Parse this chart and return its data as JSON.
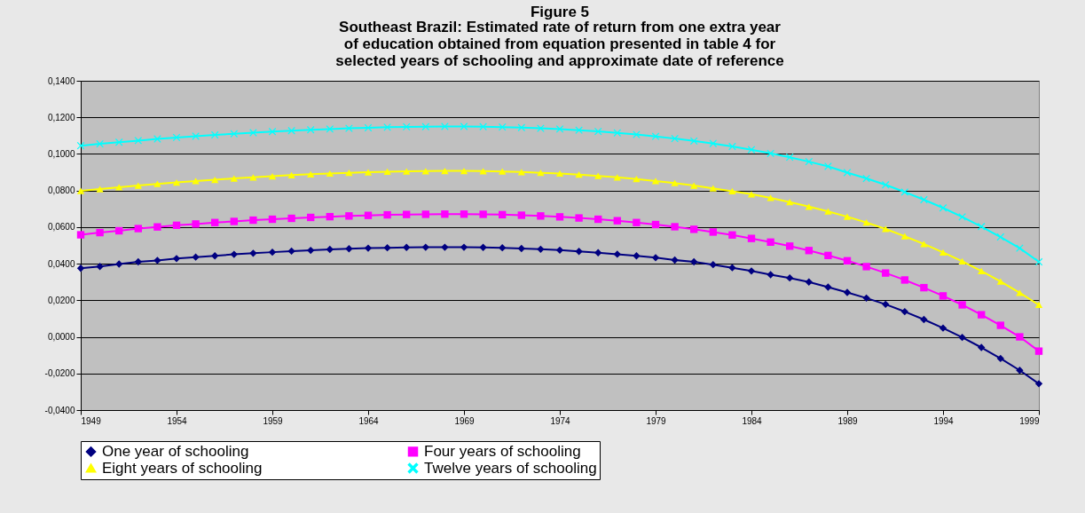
{
  "chart_data": {
    "type": "line",
    "title": "Figure 5",
    "subtitle": "Southeast Brazil: Estimated rate of return from one extra year of education obtained from equation presented in table 4 for selected years of schooling and approximate date of reference",
    "x": [
      1949,
      1950,
      1951,
      1952,
      1953,
      1954,
      1955,
      1956,
      1957,
      1958,
      1959,
      1960,
      1961,
      1962,
      1963,
      1964,
      1965,
      1966,
      1967,
      1968,
      1969,
      1970,
      1971,
      1972,
      1973,
      1974,
      1975,
      1976,
      1977,
      1978,
      1979,
      1980,
      1981,
      1982,
      1983,
      1984,
      1985,
      1986,
      1987,
      1988,
      1989,
      1990,
      1991,
      1992,
      1993,
      1994,
      1995,
      1996,
      1997,
      1998,
      1999
    ],
    "series": [
      {
        "name": "One year of schooling",
        "color": "#000080",
        "marker": "diamond",
        "values": [
          0.0375,
          0.0385,
          0.0398,
          0.041,
          0.0418,
          0.0428,
          0.0436,
          0.0443,
          0.0451,
          0.0457,
          0.0463,
          0.0469,
          0.0473,
          0.0478,
          0.0482,
          0.0485,
          0.0487,
          0.0489,
          0.049,
          0.049,
          0.049,
          0.0489,
          0.0487,
          0.0483,
          0.0479,
          0.0474,
          0.0467,
          0.046,
          0.0452,
          0.0443,
          0.0433,
          0.042,
          0.041,
          0.0395,
          0.0378,
          0.036,
          0.034,
          0.0322,
          0.03,
          0.0272,
          0.0243,
          0.0212,
          0.0178,
          0.0138,
          0.0095,
          0.0048,
          -0.0003,
          -0.0058,
          -0.0118,
          -0.0183,
          -0.0256
        ]
      },
      {
        "name": "Four years of schooling",
        "color": "#ff00ff",
        "marker": "square",
        "values": [
          0.0558,
          0.057,
          0.058,
          0.0592,
          0.0601,
          0.061,
          0.0617,
          0.0625,
          0.0631,
          0.0638,
          0.0643,
          0.0648,
          0.0653,
          0.0657,
          0.0661,
          0.0664,
          0.0667,
          0.0669,
          0.067,
          0.0671,
          0.0671,
          0.067,
          0.0668,
          0.0665,
          0.0661,
          0.0656,
          0.065,
          0.0643,
          0.0635,
          0.0625,
          0.0614,
          0.0602,
          0.0588,
          0.0573,
          0.0557,
          0.0538,
          0.0518,
          0.0496,
          0.0472,
          0.0445,
          0.0416,
          0.0384,
          0.0349,
          0.0311,
          0.0269,
          0.0224,
          0.0175,
          0.0121,
          0.0063,
          0.0,
          -0.0078
        ]
      },
      {
        "name": "Eight years of schooling",
        "color": "#ffff00",
        "marker": "triangle",
        "values": [
          0.0798,
          0.0808,
          0.0818,
          0.0827,
          0.0836,
          0.0844,
          0.0852,
          0.0859,
          0.0866,
          0.0872,
          0.0878,
          0.0884,
          0.0889,
          0.0893,
          0.0897,
          0.09,
          0.0903,
          0.0905,
          0.0906,
          0.0907,
          0.0907,
          0.0906,
          0.0904,
          0.0901,
          0.0897,
          0.0893,
          0.0887,
          0.088,
          0.0872,
          0.0863,
          0.0852,
          0.0841,
          0.0827,
          0.0812,
          0.0796,
          0.078,
          0.076,
          0.0737,
          0.0712,
          0.0686,
          0.0657,
          0.0625,
          0.059,
          0.055,
          0.0508,
          0.0462,
          0.0413,
          0.036,
          0.0303,
          0.0241,
          0.0175
        ]
      },
      {
        "name": "Twelve years of schooling",
        "color": "#00ffff",
        "marker": "cross",
        "values": [
          0.1045,
          0.1055,
          0.1064,
          0.1073,
          0.1082,
          0.109,
          0.1097,
          0.1104,
          0.111,
          0.1116,
          0.1122,
          0.1127,
          0.1132,
          0.1136,
          0.114,
          0.1143,
          0.1146,
          0.1148,
          0.1149,
          0.115,
          0.115,
          0.1149,
          0.1147,
          0.1144,
          0.114,
          0.1136,
          0.113,
          0.1123,
          0.1115,
          0.1106,
          0.1096,
          0.1084,
          0.1071,
          0.1057,
          0.1041,
          0.1023,
          0.1003,
          0.0982,
          0.0958,
          0.0932,
          0.0898,
          0.0866,
          0.0831,
          0.0792,
          0.075,
          0.0705,
          0.0656,
          0.0603,
          0.0546,
          0.0485,
          0.041
        ]
      }
    ],
    "xlim": [
      1949,
      1999
    ],
    "xticks": [
      1949,
      1954,
      1959,
      1964,
      1969,
      1974,
      1979,
      1984,
      1989,
      1994,
      1999
    ],
    "ylim": [
      -0.04,
      0.14
    ],
    "yticks": [
      {
        "value": -0.04,
        "label": "-0,0400"
      },
      {
        "value": -0.02,
        "label": "-0,0200"
      },
      {
        "value": 0,
        "label": "0,0000"
      },
      {
        "value": 0.02,
        "label": "0,0200"
      },
      {
        "value": 0.04,
        "label": "0,0400"
      },
      {
        "value": 0.06,
        "label": "0,0600"
      },
      {
        "value": 0.08,
        "label": "0,0800"
      },
      {
        "value": 0.1,
        "label": "0,1000"
      },
      {
        "value": 0.12,
        "label": "0,1200"
      },
      {
        "value": 0.14,
        "label": "0,1400"
      }
    ],
    "grid": "y",
    "legend": "bottom"
  }
}
